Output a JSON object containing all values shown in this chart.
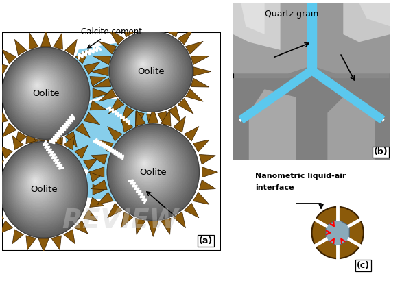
{
  "white": "#ffffff",
  "black": "#000000",
  "cement_brown": "#8B5A0A",
  "cement_edge": "#3a2000",
  "pore_blue": "#87CEEB",
  "grain_highlight": "#f0f0f0",
  "grain_mid": "#b0b0b0",
  "grain_dark": "#606060",
  "quartz_dark": "#6e6e6e",
  "quartz_med": "#909090",
  "quartz_light": "#c0c0c0",
  "quartz_lighter": "#d5d5d5",
  "fluid_blue": "#5BC8EE",
  "red_arrow": "#dd0000",
  "pore_gray_blue": "#9ab8c8",
  "label_a": "(a)",
  "label_b": "(b)",
  "label_c": "(c)",
  "text_calcite": "Calcite cement",
  "text_oolite": "Oolite",
  "text_quartz": "Quartz grain",
  "text_nano1": "Nanometric liquid-air",
  "text_nano2": "interface"
}
